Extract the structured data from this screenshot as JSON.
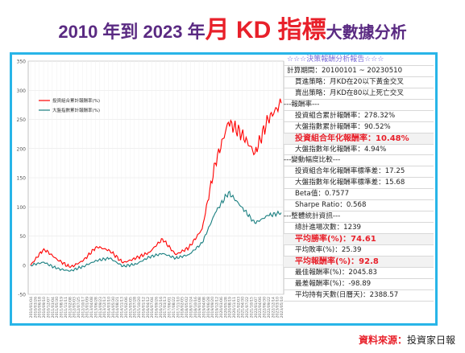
{
  "title": {
    "part1": "2010 年到 2023 年",
    "part2": "月 KD 指標",
    "part3": "大數據分析"
  },
  "source": {
    "label": "資料來源",
    "sep": "：",
    "value": "投資家日報"
  },
  "colors": {
    "title": "#5a2a82",
    "accent_red": "#e8202a",
    "frame": "#28b5e8",
    "series_portfolio": "#ff0000",
    "series_index": "#1a7f80",
    "report_header": "#7a6bd6"
  },
  "report": {
    "header": "☆☆☆決策報酬分析報告☆☆☆",
    "period": "計算期間：20100101 ~ 20230510",
    "buy_rule": "買進策略：月KD在20以下黃金交叉",
    "sell_rule": "賣出策略：月KD在80以上死亡交叉",
    "sec_return": "---報酬率---",
    "port_cum": "投資組合累計報酬率：278.32%",
    "idx_cum": "大盤指數累計報酬率：90.52%",
    "port_ann": "投資組合年化報酬率：10.48%",
    "idx_ann": "大盤指數年化報酬率：4.94%",
    "sec_vol": "---變動幅度比較---",
    "port_sd": "投資組合年化報酬率標準差：17.25",
    "idx_sd": "大盤指數年化報酬率標準差：15.68",
    "beta": "Beta值：0.7577",
    "sharpe": "Sharpe Ratio：0.568",
    "sec_trade": "---整體統計資訊---",
    "trades": "總計進場次數：1239",
    "win_rate": "平均勝率(%)：74.61",
    "loss_rate": "平均敗率(%)：25.39",
    "avg_ret": "平均報酬率(%)：92.8",
    "best": "最佳報酬率(%)：2045.83",
    "worst": "最差報酬率(%)：-98.89",
    "hold_days": "平均持有天數(日曆天)：2388.57"
  },
  "chart_data": {
    "type": "line",
    "title": "",
    "xlabel": "",
    "ylabel": "",
    "ylim": [
      -50,
      350
    ],
    "yticks": [
      -50,
      0,
      50,
      100,
      150,
      200,
      250,
      300,
      350
    ],
    "grid": true,
    "legend_position": "top-left",
    "x": [
      "2010/01/04",
      "2010/10/25",
      "2011/08/11",
      "2012/05/31",
      "2013/03/19",
      "2014/01/03",
      "2014/10/23",
      "2015/08/11",
      "2016/05/31",
      "2017/03/17",
      "2018/01/03",
      "2018/10/19",
      "2019/08/07",
      "2020/05/26",
      "2021/03/12",
      "2022/01/03",
      "2022/06/01",
      "2022/10/25",
      "2023/03/15",
      "2023/05/10"
    ],
    "xtick_labels": [
      "2010/01/04",
      "2010/03/26",
      "2010/06/18",
      "2010/09/10",
      "2010/12/07",
      "2011/03/04",
      "2011/05/30",
      "2011/08/19",
      "2011/11/11",
      "2012/02/08",
      "2012/05/03",
      "2012/07/25",
      "2012/10/17",
      "2013/01/09",
      "2013/04/08",
      "2013/06/28",
      "2013/09/23",
      "2013/12/13",
      "2014/03/10",
      "2014/05/30",
      "2014/08/21",
      "2014/11/13",
      "2015/02/06",
      "2015/05/05",
      "2015/07/28",
      "2015/10/20",
      "2016/01/12",
      "2016/04/12",
      "2016/07/04",
      "2016/09/26",
      "2016/12/16",
      "2017/03/13",
      "2017/06/01",
      "2017/08/22",
      "2017/11/10",
      "2018/02/05",
      "2018/05/02",
      "2018/07/24",
      "2018/10/16",
      "2019/01/08",
      "2019/04/08",
      "2019/06/28",
      "2019/09/20",
      "2019/12/12",
      "2020/03/06",
      "2020/05/28",
      "2020/08/19",
      "2020/11/11",
      "2021/02/03",
      "2021/04/30",
      "2021/07/22",
      "2021/10/15",
      "2022/01/07",
      "2022/04/06",
      "2022/06/30",
      "2022/09/22",
      "2022/12/14",
      "2023/03/10",
      "2023/05/10"
    ],
    "series": [
      {
        "name": "投資組合累計報酬率(%)",
        "values": [
          0,
          28,
          10,
          -4,
          8,
          32,
          25,
          4,
          12,
          22,
          45,
          18,
          30,
          62,
          175,
          245,
          225,
          192,
          250,
          278
        ]
      },
      {
        "name": "大盤指數累計報酬率(%)",
        "values": [
          0,
          5,
          -6,
          -10,
          -2,
          8,
          12,
          -2,
          2,
          14,
          20,
          12,
          18,
          38,
          90,
          125,
          100,
          72,
          85,
          90
        ]
      }
    ]
  }
}
